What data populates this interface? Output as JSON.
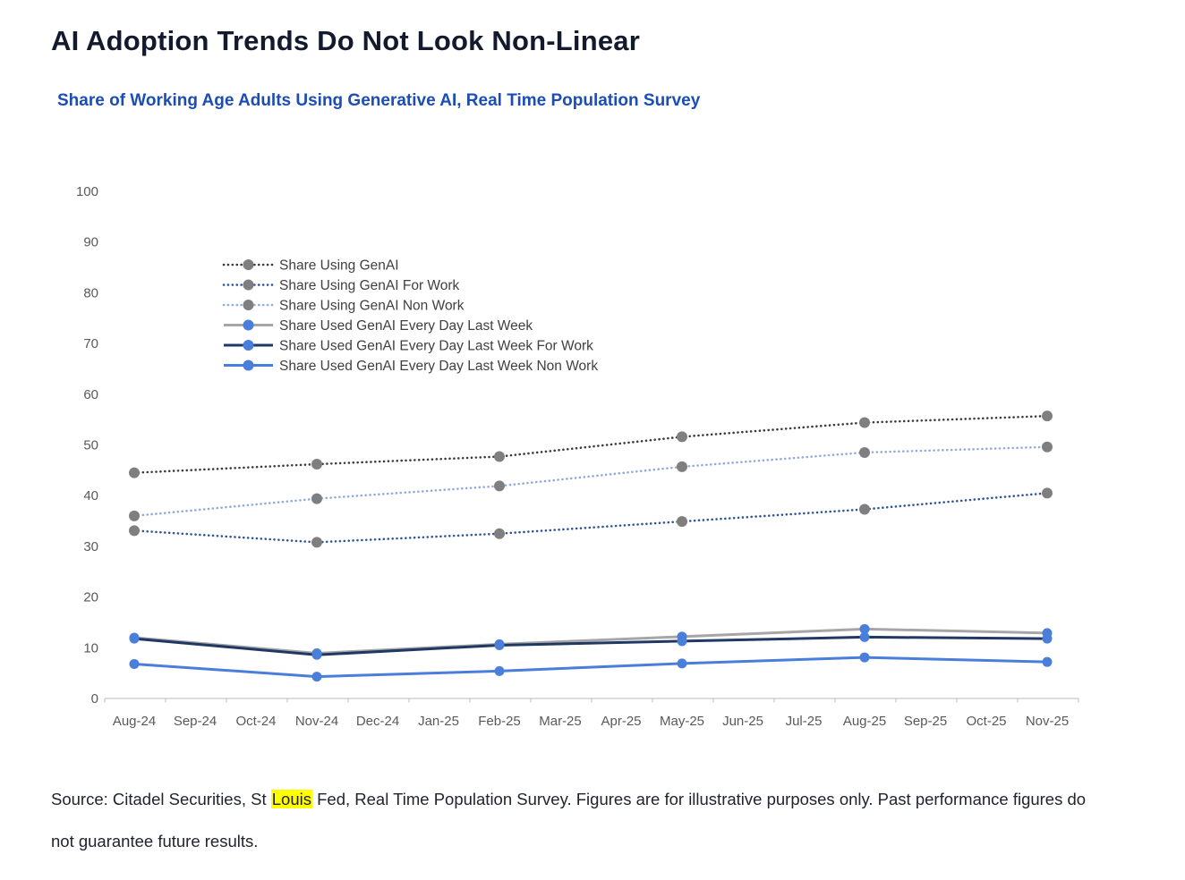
{
  "page": {
    "title": "AI Adoption Trends Do Not Look Non-Linear",
    "subtitle": "Share of Working Age Adults Using Generative AI, Real Time Population Survey"
  },
  "source": {
    "before": "Source: Citadel Securities, St ",
    "highlight": "Louis",
    "after": " Fed, Real Time Population Survey. Figures are for illustrative purposes only. Past performance figures do not guarantee future results."
  },
  "colors": {
    "title": "#141a2e",
    "subtitle_blue": "#1c4db5",
    "axis_text": "#595959",
    "legend_text": "#404040",
    "axis_line": "#d0d0d0",
    "tick": "#c6c6c6",
    "highlight_bg": "#ffff00"
  },
  "chart_data": {
    "type": "line",
    "title": "Share of Working Age Adults Using Generative AI, Real Time Population Survey",
    "xlabel": "",
    "ylabel": "",
    "ylim": [
      0,
      100
    ],
    "y_tick_step": 10,
    "grid": false,
    "legend_position": "inside-top-left",
    "x_labels": [
      "Aug-24",
      "Sep-24",
      "Oct-24",
      "Nov-24",
      "Dec-24",
      "Jan-25",
      "Feb-25",
      "Mar-25",
      "Apr-25",
      "May-25",
      "Jun-25",
      "Jul-25",
      "Aug-25",
      "Sep-25",
      "Oct-25",
      "Nov-25"
    ],
    "data_month_indices": [
      0,
      3,
      6,
      9,
      12,
      15
    ],
    "data_months": [
      "Aug-24",
      "Nov-24",
      "Feb-25",
      "May-25",
      "Aug-25",
      "Nov-25"
    ],
    "series": [
      {
        "name": "Share Using GenAI",
        "style": "dotted",
        "line_color": "#3b3b3b",
        "marker_color": "#7f7f7f",
        "values": [
          44.5,
          46.2,
          47.7,
          51.6,
          54.4,
          55.7
        ]
      },
      {
        "name": "Share Using GenAI For Work",
        "style": "dotted",
        "line_color": "#2f5597",
        "marker_color": "#7f7f7f",
        "values": [
          33.1,
          30.8,
          32.5,
          34.9,
          37.3,
          40.5
        ]
      },
      {
        "name": "Share Using GenAI Non Work",
        "style": "dotted",
        "line_color": "#8faadc",
        "marker_color": "#7f7f7f",
        "values": [
          36.0,
          39.4,
          41.9,
          45.7,
          48.5,
          49.6
        ]
      },
      {
        "name": "Share Used GenAI Every Day Last Week",
        "style": "solid",
        "line_color": "#a6a6a6",
        "marker_color": "#4a7edb",
        "values": [
          12.0,
          8.9,
          10.7,
          12.2,
          13.7,
          12.9
        ]
      },
      {
        "name": "Share Used GenAI Every Day Last Week For Work",
        "style": "solid",
        "line_color": "#1f3864",
        "marker_color": "#4a7edb",
        "values": [
          11.8,
          8.6,
          10.5,
          11.3,
          12.1,
          11.8
        ]
      },
      {
        "name": "Share Used GenAI Every Day Last Week Non Work",
        "style": "solid",
        "line_color": "#4a7edb",
        "marker_color": "#4a7edb",
        "values": [
          6.8,
          4.3,
          5.4,
          6.9,
          8.1,
          7.2
        ]
      }
    ]
  }
}
